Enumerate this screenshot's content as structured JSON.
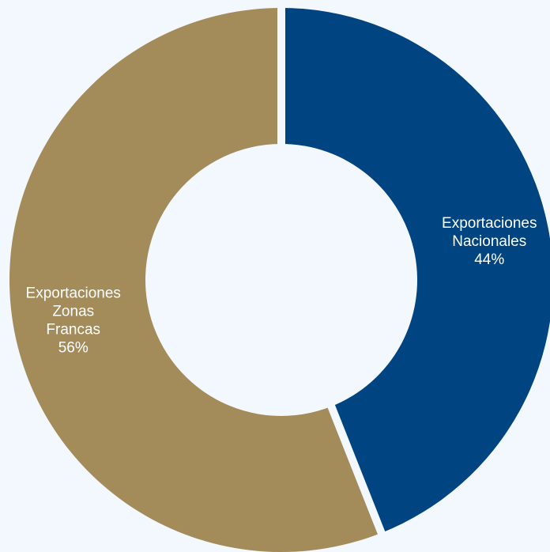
{
  "chart_data": {
    "type": "pie",
    "donut": true,
    "categories": [
      "Exportaciones Nacionales",
      "Exportaciones Zonas Francas"
    ],
    "values": [
      44,
      56
    ],
    "colors": [
      "#004481",
      "#a48b5a"
    ],
    "labels": [
      {
        "lines": [
          "Exportaciones",
          "Nacionales"
        ],
        "value_text": "44%"
      },
      {
        "lines": [
          "Exportaciones",
          "Zonas",
          "Francas"
        ],
        "value_text": "56%"
      }
    ],
    "legend": "none"
  },
  "page": {
    "background": "#f2f8fd",
    "separator_color": "#f2f8fd"
  }
}
